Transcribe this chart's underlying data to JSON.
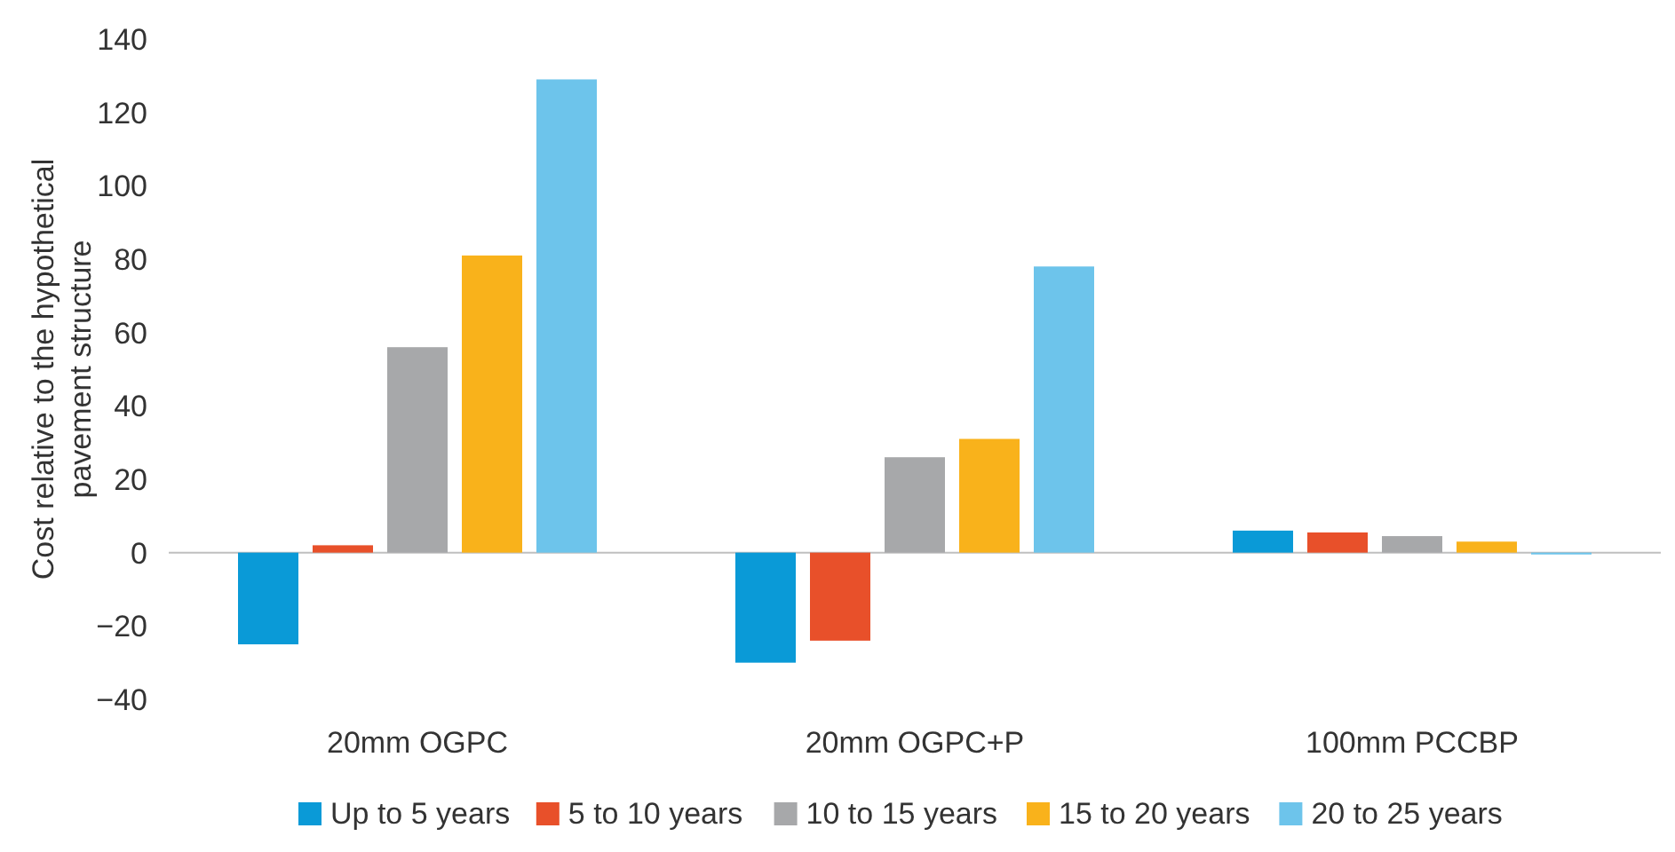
{
  "chart_data": {
    "type": "bar",
    "ylabel": "Cost relative to the hypothetical pavement structure",
    "categories": [
      "20mm OGPC",
      "20mm OGPC+P",
      "100mm PCCBP"
    ],
    "series": [
      {
        "name": "Up to 5 years",
        "color": "#0a9ad7",
        "values": [
          -25,
          -30,
          6
        ]
      },
      {
        "name": "5 to 10 years",
        "color": "#e8502a",
        "values": [
          2,
          -24,
          5.5
        ]
      },
      {
        "name": "10 to 15 years",
        "color": "#a7a8aa",
        "values": [
          56,
          26,
          4.5
        ]
      },
      {
        "name": "15 to 20 years",
        "color": "#f9b21b",
        "values": [
          81,
          31,
          3
        ]
      },
      {
        "name": "20 to 25 years",
        "color": "#6dc4eb",
        "values": [
          129,
          78,
          -0.5
        ]
      }
    ],
    "ylim": [
      -40,
      140
    ],
    "yticks": [
      {
        "value": -40,
        "label": "−40"
      },
      {
        "value": -20,
        "label": "−20"
      },
      0,
      20,
      40,
      60,
      80,
      100,
      120,
      140
    ],
    "legend": "bottom"
  }
}
